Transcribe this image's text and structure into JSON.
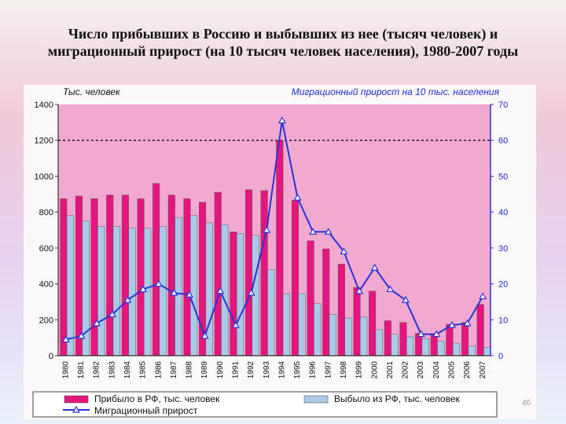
{
  "title": "Число прибывших в Россию и выбывших из нее (тысяч человек) и миграционный прирост (на 10 тысяч человек населения), 1980-2007 годы",
  "page_number": "46",
  "chart_data": {
    "type": "bar",
    "title": "Число прибывших в Россию и выбывших из нее (тысяч человек) и миграционный прирост (на 10 тысяч человек населения), 1980-2007 годы",
    "left_axis_label": "Тыс. человек",
    "right_axis_label": "Миграционный прирост на 10 тыс. населения",
    "left_ylim": [
      0,
      1400
    ],
    "left_ticks": [
      "0",
      "200",
      "400",
      "600",
      "800",
      "1000",
      "1200",
      "1400"
    ],
    "right_ylim": [
      0,
      70
    ],
    "right_ticks": [
      "0",
      "10",
      "20",
      "30",
      "40",
      "50",
      "60",
      "70"
    ],
    "gridline_value": 1200,
    "categories": [
      "1980",
      "1981",
      "1982",
      "1983",
      "1984",
      "1985",
      "1986",
      "1987",
      "1988",
      "1989",
      "1990",
      "1991",
      "1992",
      "1993",
      "1994",
      "1995",
      "1996",
      "1997",
      "1998",
      "1999",
      "2000",
      "2001",
      "2002",
      "2003",
      "2004",
      "2005",
      "2006",
      "2007"
    ],
    "series": [
      {
        "name": "Прибыло в РФ, тыс. человек",
        "kind": "bar",
        "axis": "left",
        "color": "#e6157d",
        "values": [
          875,
          890,
          875,
          895,
          895,
          875,
          960,
          895,
          875,
          855,
          910,
          690,
          925,
          920,
          1200,
          865,
          640,
          595,
          510,
          380,
          360,
          195,
          185,
          125,
          120,
          175,
          185,
          285
        ]
      },
      {
        "name": "Выбыло из РФ, тыс. человек",
        "kind": "bar",
        "axis": "left",
        "color": "#a9cbea",
        "values": [
          780,
          750,
          720,
          720,
          710,
          710,
          720,
          770,
          780,
          740,
          730,
          680,
          670,
          480,
          345,
          345,
          290,
          230,
          210,
          215,
          145,
          120,
          105,
          95,
          80,
          70,
          55,
          45
        ]
      },
      {
        "name": "Миграционный прирост",
        "kind": "line",
        "axis": "right",
        "color": "#2b33d6",
        "values": [
          4.5,
          5.5,
          9,
          11.5,
          15.5,
          18.5,
          20,
          17.5,
          17,
          5.5,
          18,
          8.5,
          17.5,
          35,
          65.5,
          44,
          34.5,
          34.5,
          29,
          18,
          24.5,
          18.5,
          15.5,
          6,
          6,
          8.5,
          9,
          16.5
        ]
      }
    ],
    "legend_placement": "bottom"
  }
}
